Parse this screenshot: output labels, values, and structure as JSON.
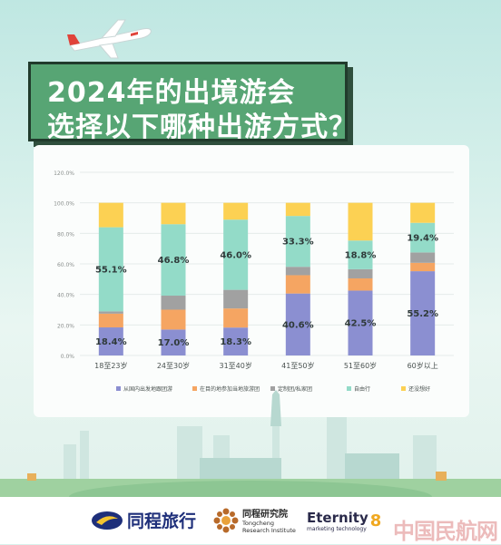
{
  "title": {
    "line1": "2024年的出境游会",
    "line2": "选择以下哪种出游方式？"
  },
  "colors": {
    "tour_group": "#8b8fd1",
    "local_group": "#f5a562",
    "custom_group": "#a1a1a1",
    "self_guided": "#93dbc8",
    "undecided": "#fcd153"
  },
  "chart_data": {
    "type": "bar",
    "stacked": true,
    "categories": [
      "18至23岁",
      "24至30岁",
      "31至40岁",
      "41至50岁",
      "51至60岁",
      "60岁以上"
    ],
    "y_ticks": [
      "0.0%",
      "20.0%",
      "40.0%",
      "60.0%",
      "80.0%",
      "100.0%",
      "120.0%"
    ],
    "ylim": [
      0,
      120
    ],
    "grid": true,
    "legend_position": "bottom",
    "series": [
      {
        "name": "从国内出发地跟团游",
        "color_key": "tour_group",
        "values": [
          18.4,
          17.0,
          18.3,
          40.6,
          42.5,
          55.2
        ],
        "labels": [
          "18.4%",
          "17.0%",
          "18.3%",
          "40.6%",
          "42.5%",
          "55.2%"
        ]
      },
      {
        "name": "在目的地参加当地旅游团",
        "color_key": "local_group",
        "values": [
          9.0,
          13.0,
          12.5,
          12.0,
          8.0,
          5.5
        ],
        "labels": [
          "",
          "",
          "",
          "",
          "",
          ""
        ]
      },
      {
        "name": "定制团/私家团",
        "color_key": "custom_group",
        "values": [
          1.5,
          9.2,
          12.2,
          5.5,
          6.0,
          6.8
        ],
        "labels": [
          "",
          "",
          "",
          "",
          "",
          ""
        ]
      },
      {
        "name": "自由行",
        "color_key": "self_guided",
        "values": [
          55.1,
          46.8,
          46.0,
          33.3,
          18.8,
          19.4
        ],
        "labels": [
          "55.1%",
          "46.8%",
          "46.0%",
          "33.3%",
          "18.8%",
          "19.4%"
        ]
      },
      {
        "name": "还没想好",
        "color_key": "undecided",
        "values": [
          16.0,
          14.0,
          11.0,
          8.6,
          24.7,
          13.1
        ],
        "labels": [
          "",
          "",
          "",
          "",
          "",
          ""
        ]
      }
    ]
  },
  "logos": {
    "tongcheng": "同程旅行",
    "research_cn": "同程研究院",
    "research_en1": "Tongcheng",
    "research_en2": "Research Institute",
    "eternity": "Eternity",
    "eternity_sub": "marketing technology",
    "eternity_mark": "8"
  },
  "watermark": "中国民航网"
}
